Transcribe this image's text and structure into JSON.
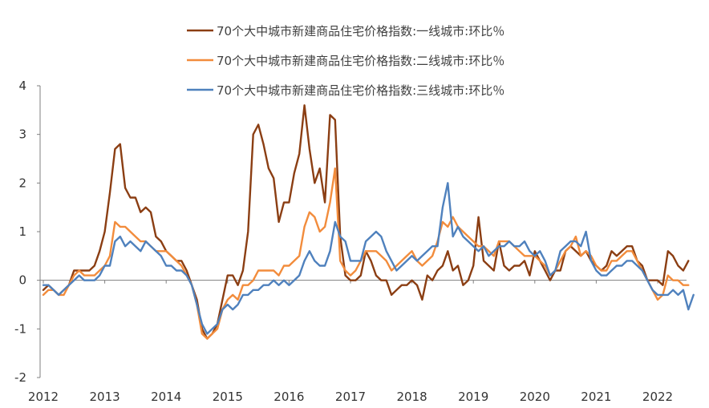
{
  "chart_data": {
    "type": "line",
    "title": "",
    "xlabel": "",
    "ylabel": "",
    "ylim": [
      -2,
      4
    ],
    "y_ticks": [
      "4",
      "3",
      "2",
      "1",
      "0",
      "-1",
      "-2"
    ],
    "x_ticks": [
      "2012",
      "2013",
      "2014",
      "2015",
      "2016",
      "2017",
      "2018",
      "2019",
      "2020",
      "2021",
      "2022"
    ],
    "x_start": "2012-01",
    "x_frequency": "monthly",
    "grid": false,
    "legend_position": "top",
    "series": [
      {
        "name": "70个大中城市新建商品住宅价格指数:一线城市:环比％",
        "color": "#8B3E13",
        "values": [
          -0.2,
          -0.1,
          -0.2,
          -0.3,
          -0.2,
          -0.1,
          0.2,
          0.2,
          0.2,
          0.2,
          0.3,
          0.6,
          1.0,
          1.8,
          2.7,
          2.8,
          1.9,
          1.7,
          1.7,
          1.4,
          1.5,
          1.4,
          0.9,
          0.8,
          0.6,
          0.5,
          0.4,
          0.4,
          0.2,
          -0.1,
          -0.4,
          -1.0,
          -1.2,
          -1.1,
          -0.9,
          -0.4,
          0.1,
          0.1,
          -0.1,
          0.2,
          1.0,
          3.0,
          3.2,
          2.8,
          2.3,
          2.1,
          1.2,
          1.6,
          1.6,
          2.2,
          2.6,
          3.6,
          2.7,
          2.0,
          2.3,
          1.6,
          3.4,
          3.3,
          0.9,
          0.1,
          0.0,
          0.0,
          0.1,
          0.6,
          0.4,
          0.1,
          0.0,
          0.0,
          -0.3,
          -0.2,
          -0.1,
          -0.1,
          0.0,
          -0.1,
          -0.4,
          0.1,
          0.0,
          0.2,
          0.3,
          0.6,
          0.2,
          0.3,
          -0.1,
          0.0,
          0.3,
          1.3,
          0.4,
          0.3,
          0.2,
          0.8,
          0.3,
          0.2,
          0.3,
          0.3,
          0.4,
          0.1,
          0.6,
          0.4,
          0.2,
          0.0,
          0.2,
          0.2,
          0.6,
          0.7,
          0.6,
          0.5,
          0.6,
          0.4,
          0.3,
          0.2,
          0.3,
          0.6,
          0.5,
          0.6,
          0.7,
          0.7,
          0.4,
          0.3,
          0.0,
          0.0,
          0.0,
          -0.1,
          0.6,
          0.5,
          0.3,
          0.2,
          0.4
        ]
      },
      {
        "name": "70个大中城市新建商品住宅价格指数:二线城市:环比％",
        "color": "#F28C3C",
        "values": [
          -0.3,
          -0.2,
          -0.2,
          -0.3,
          -0.3,
          -0.1,
          0.1,
          0.2,
          0.1,
          0.1,
          0.1,
          0.2,
          0.3,
          0.5,
          1.2,
          1.1,
          1.1,
          1.0,
          0.9,
          0.8,
          0.8,
          0.7,
          0.6,
          0.6,
          0.6,
          0.5,
          0.4,
          0.3,
          0.1,
          -0.1,
          -0.5,
          -1.1,
          -1.2,
          -1.1,
          -1.0,
          -0.6,
          -0.4,
          -0.3,
          -0.4,
          -0.1,
          -0.1,
          0.0,
          0.2,
          0.2,
          0.2,
          0.2,
          0.1,
          0.3,
          0.3,
          0.4,
          0.5,
          1.1,
          1.4,
          1.3,
          1.0,
          1.1,
          1.6,
          2.3,
          0.4,
          0.2,
          0.1,
          0.2,
          0.4,
          0.6,
          0.6,
          0.6,
          0.5,
          0.4,
          0.2,
          0.3,
          0.4,
          0.5,
          0.6,
          0.4,
          0.3,
          0.4,
          0.5,
          0.8,
          1.2,
          1.1,
          1.3,
          1.1,
          1.0,
          0.9,
          0.8,
          0.7,
          0.7,
          0.6,
          0.5,
          0.8,
          0.8,
          0.8,
          0.7,
          0.6,
          0.5,
          0.5,
          0.5,
          0.4,
          0.3,
          0.1,
          0.2,
          0.4,
          0.6,
          0.7,
          0.9,
          0.5,
          0.6,
          0.5,
          0.3,
          0.2,
          0.2,
          0.4,
          0.4,
          0.5,
          0.6,
          0.6,
          0.4,
          0.2,
          0.0,
          -0.2,
          -0.4,
          -0.3,
          0.1,
          0.0,
          0.0,
          -0.1,
          -0.1
        ]
      },
      {
        "name": "70个大中城市新建商品住宅价格指数:三线城市:环比％",
        "color": "#4F81BD",
        "values": [
          -0.1,
          -0.1,
          -0.2,
          -0.3,
          -0.2,
          -0.1,
          0.0,
          0.1,
          0.0,
          0.0,
          0.0,
          0.1,
          0.3,
          0.3,
          0.8,
          0.9,
          0.7,
          0.8,
          0.7,
          0.6,
          0.8,
          0.7,
          0.6,
          0.5,
          0.3,
          0.3,
          0.2,
          0.2,
          0.1,
          -0.1,
          -0.5,
          -0.9,
          -1.1,
          -1.0,
          -0.9,
          -0.6,
          -0.5,
          -0.6,
          -0.5,
          -0.3,
          -0.3,
          -0.2,
          -0.2,
          -0.1,
          -0.1,
          0.0,
          -0.1,
          0.0,
          -0.1,
          0.0,
          0.1,
          0.4,
          0.6,
          0.4,
          0.3,
          0.3,
          0.6,
          1.2,
          0.9,
          0.8,
          0.4,
          0.4,
          0.4,
          0.8,
          0.9,
          1.0,
          0.9,
          0.6,
          0.4,
          0.2,
          0.3,
          0.4,
          0.5,
          0.4,
          0.5,
          0.6,
          0.7,
          0.7,
          1.5,
          2.0,
          0.9,
          1.1,
          0.9,
          0.8,
          0.7,
          0.6,
          0.7,
          0.5,
          0.6,
          0.7,
          0.7,
          0.8,
          0.7,
          0.7,
          0.8,
          0.6,
          0.5,
          0.6,
          0.4,
          0.1,
          0.2,
          0.6,
          0.7,
          0.8,
          0.8,
          0.7,
          1.0,
          0.4,
          0.2,
          0.1,
          0.1,
          0.2,
          0.3,
          0.3,
          0.4,
          0.4,
          0.3,
          0.2,
          0.0,
          -0.2,
          -0.3,
          -0.3,
          -0.3,
          -0.2,
          -0.3,
          -0.2,
          -0.6,
          -0.3
        ]
      }
    ]
  }
}
